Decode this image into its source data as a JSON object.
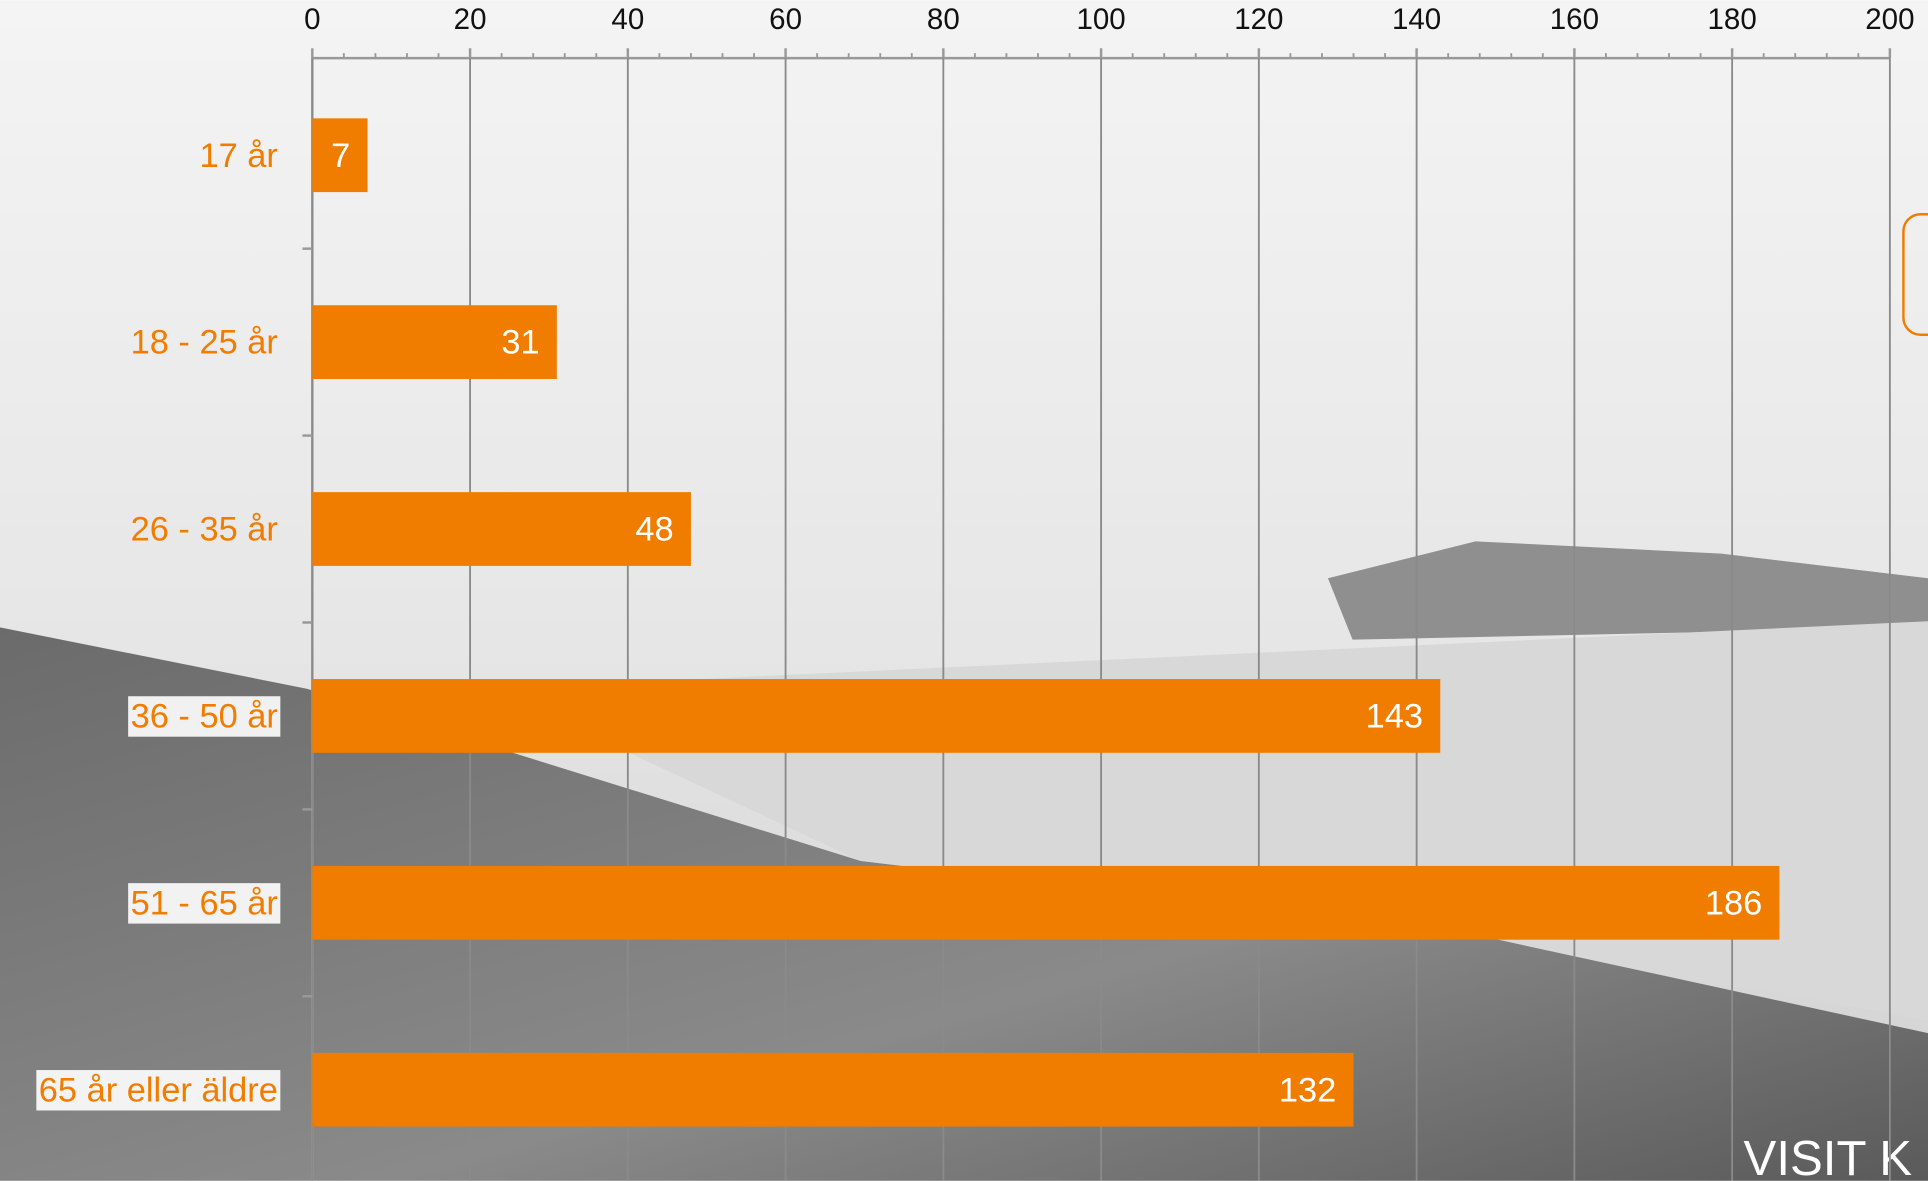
{
  "chart_data": {
    "type": "hbar",
    "categories": [
      "17 år",
      "18 - 25 år",
      "26 - 35 år",
      "36 - 50 år",
      "51 - 65 år",
      "65 år eller äldre"
    ],
    "values": [
      7,
      31,
      48,
      143,
      186,
      132
    ],
    "color": "#f07d00",
    "label_color": "#f07d00",
    "xlim": [
      0,
      200
    ],
    "xticks": [
      0,
      20,
      40,
      60,
      80,
      100,
      120,
      140,
      160,
      180,
      200
    ],
    "grid": true,
    "annotation": "VISIT K"
  }
}
